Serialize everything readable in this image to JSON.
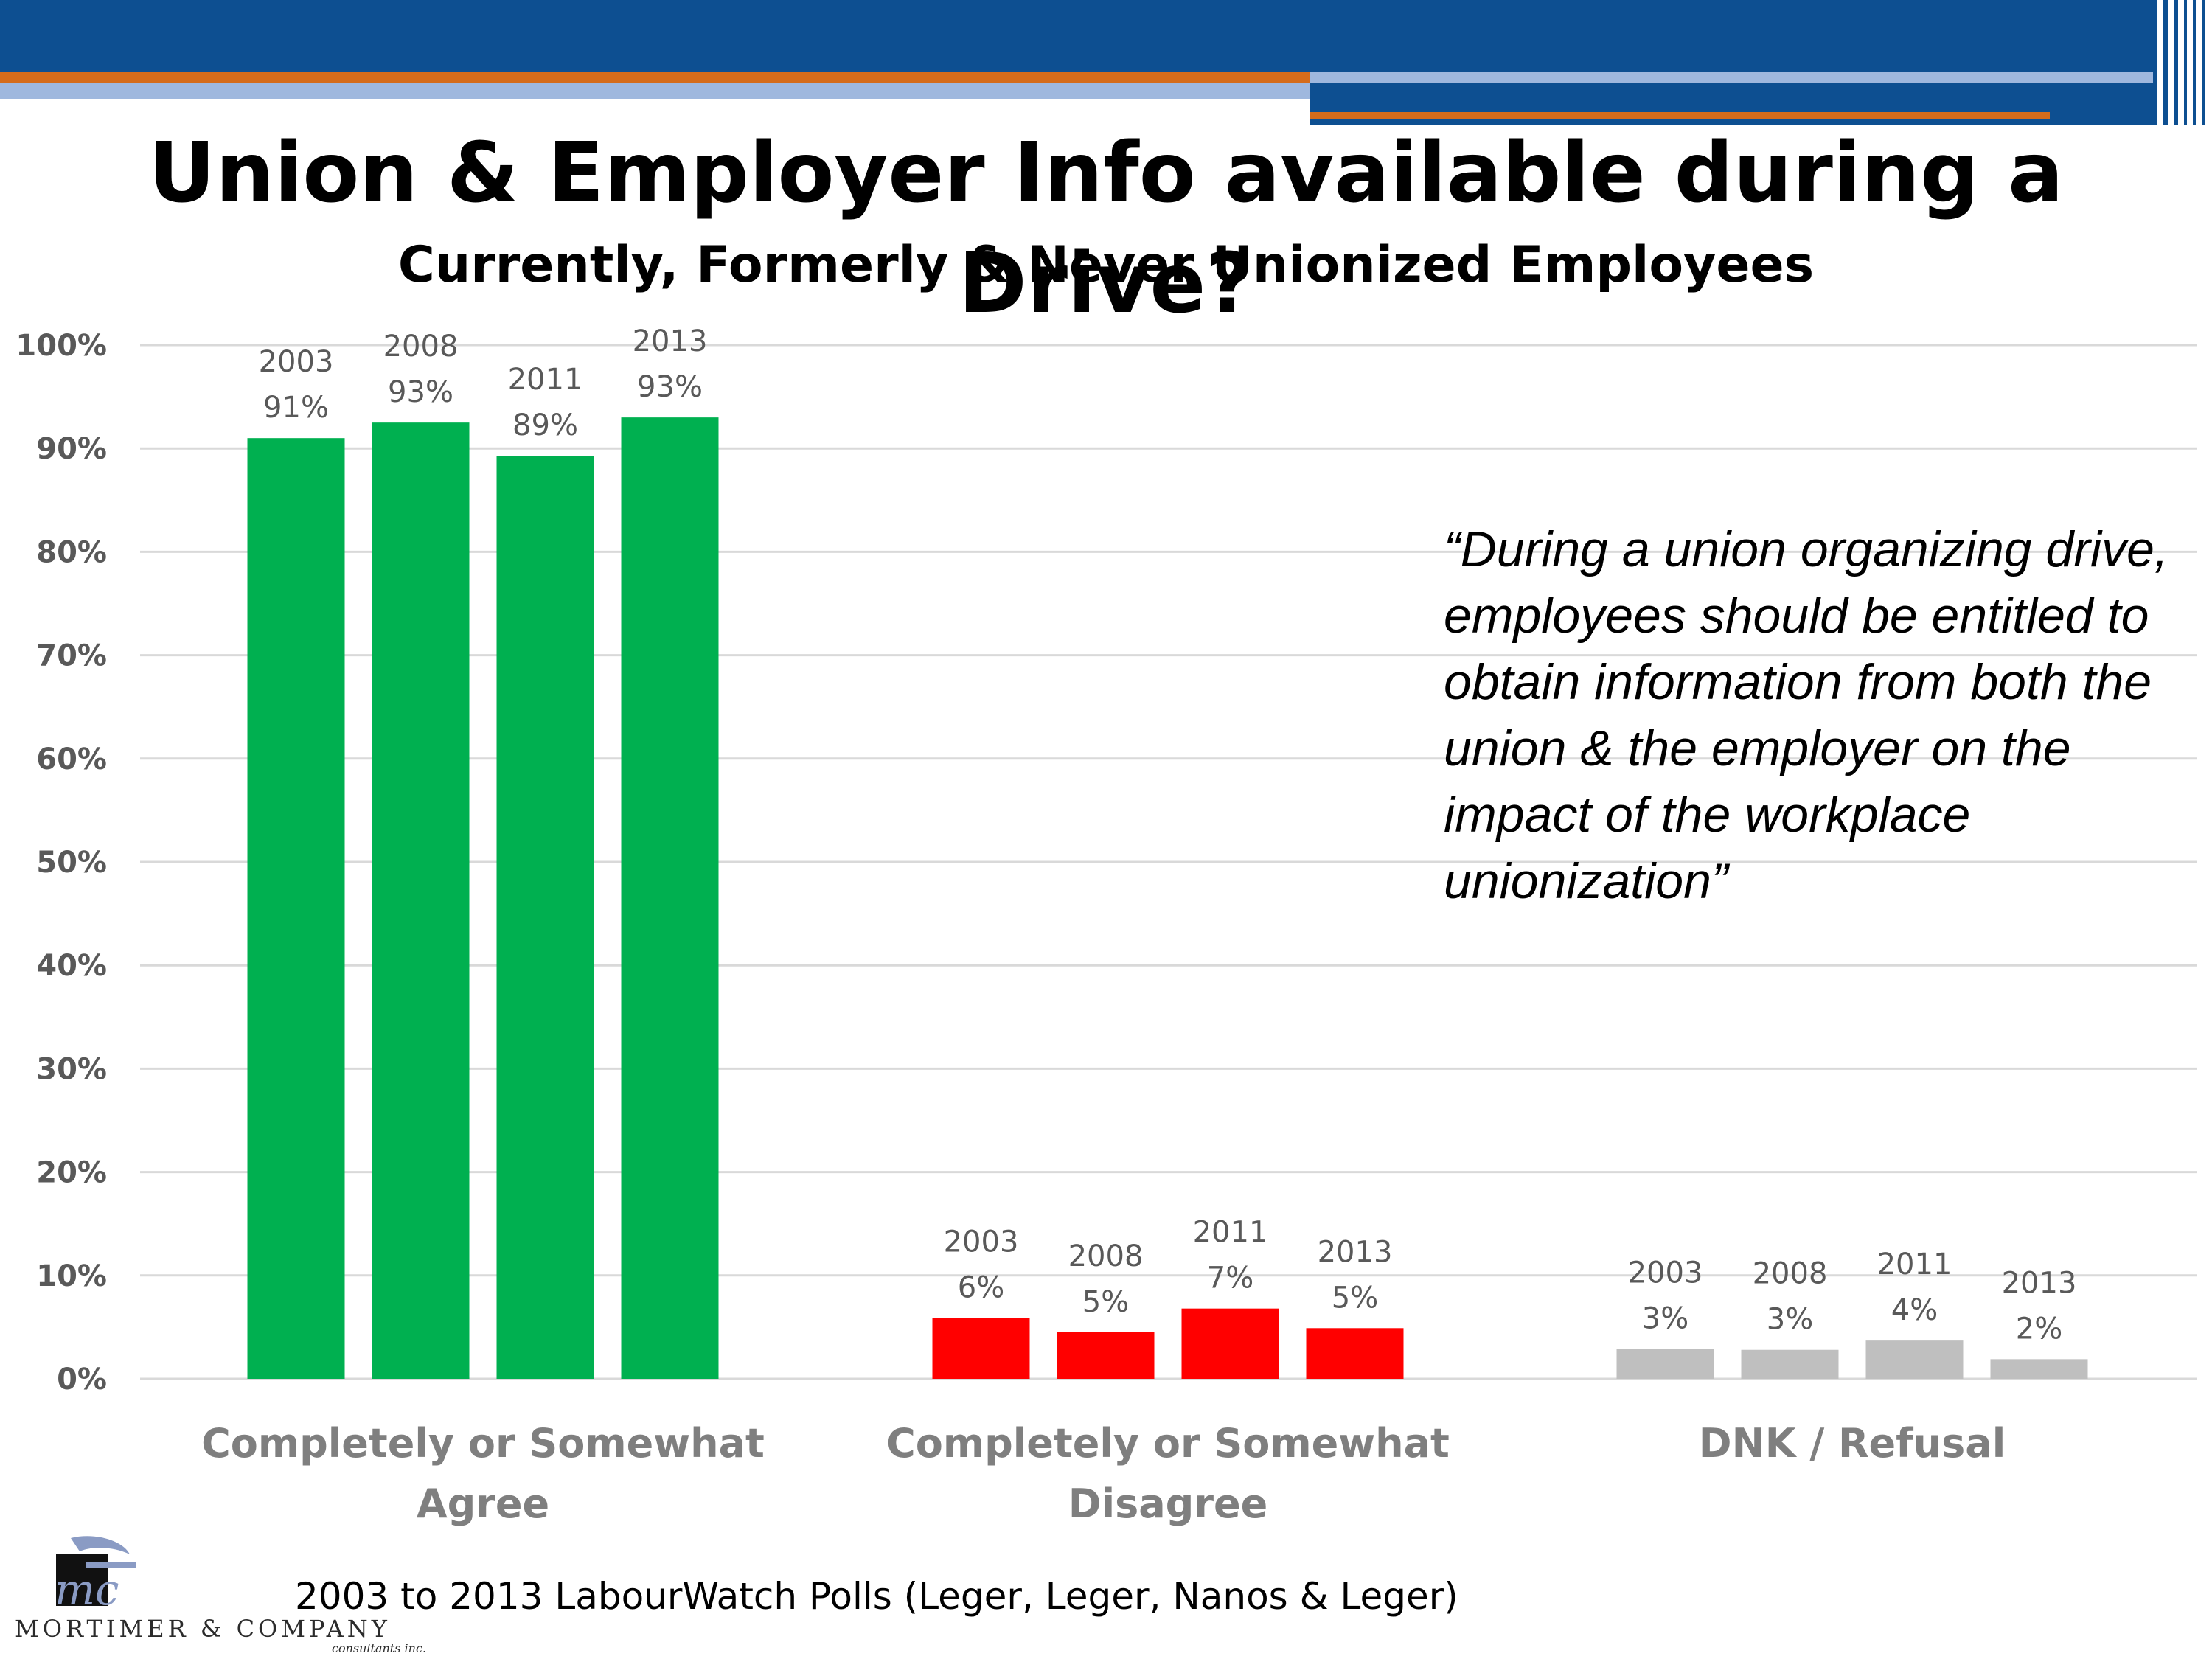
{
  "slide": {
    "title": "Union & Employer Info available during a Drive?",
    "subtitle": "Currently, Formerly & Never Unionized Employees",
    "quote": "“During a union organizing drive, employees should be entitled to obtain information from both the union & the employer on the impact of the workplace unionization”",
    "source": "2003 to 2013 LabourWatch Polls (Leger, Leger, Nanos & Leger)",
    "logo": {
      "name": "MORTIMER & COMPANY",
      "sub": "consultants inc.",
      "mark_text": "mc"
    }
  },
  "colors": {
    "header_blue": "#0d4f91",
    "accent_orange": "#d56c1b",
    "agree_green": "#00b050",
    "disagree_red": "#ff0000",
    "dnk_gray": "#bfbfbf"
  },
  "chart_data": {
    "type": "bar",
    "title": "",
    "xlabel": "",
    "ylabel": "",
    "ylim": [
      0,
      100
    ],
    "yticks": [
      "0%",
      "10%",
      "20%",
      "30%",
      "40%",
      "50%",
      "60%",
      "70%",
      "80%",
      "90%",
      "100%"
    ],
    "grid": true,
    "legend": "none",
    "groups": [
      {
        "category": "Completely or Somewhat Agree",
        "color": "#00b050",
        "bars": [
          {
            "year": "2003",
            "value": 91,
            "label": "91%"
          },
          {
            "year": "2008",
            "value": 92.5,
            "label": "93%"
          },
          {
            "year": "2011",
            "value": 89.3,
            "label": "89%"
          },
          {
            "year": "2013",
            "value": 93,
            "label": "93%"
          }
        ]
      },
      {
        "category": "Completely or Somewhat Disagree",
        "color": "#ff0000",
        "bars": [
          {
            "year": "2003",
            "value": 5.9,
            "label": "6%"
          },
          {
            "year": "2008",
            "value": 4.5,
            "label": "5%"
          },
          {
            "year": "2011",
            "value": 6.8,
            "label": "7%"
          },
          {
            "year": "2013",
            "value": 4.9,
            "label": "5%"
          }
        ]
      },
      {
        "category": "DNK / Refusal",
        "color": "#bfbfbf",
        "bars": [
          {
            "year": "2003",
            "value": 2.9,
            "label": "3%"
          },
          {
            "year": "2008",
            "value": 2.8,
            "label": "3%"
          },
          {
            "year": "2011",
            "value": 3.7,
            "label": "4%"
          },
          {
            "year": "2013",
            "value": 1.9,
            "label": "2%"
          }
        ]
      }
    ]
  }
}
